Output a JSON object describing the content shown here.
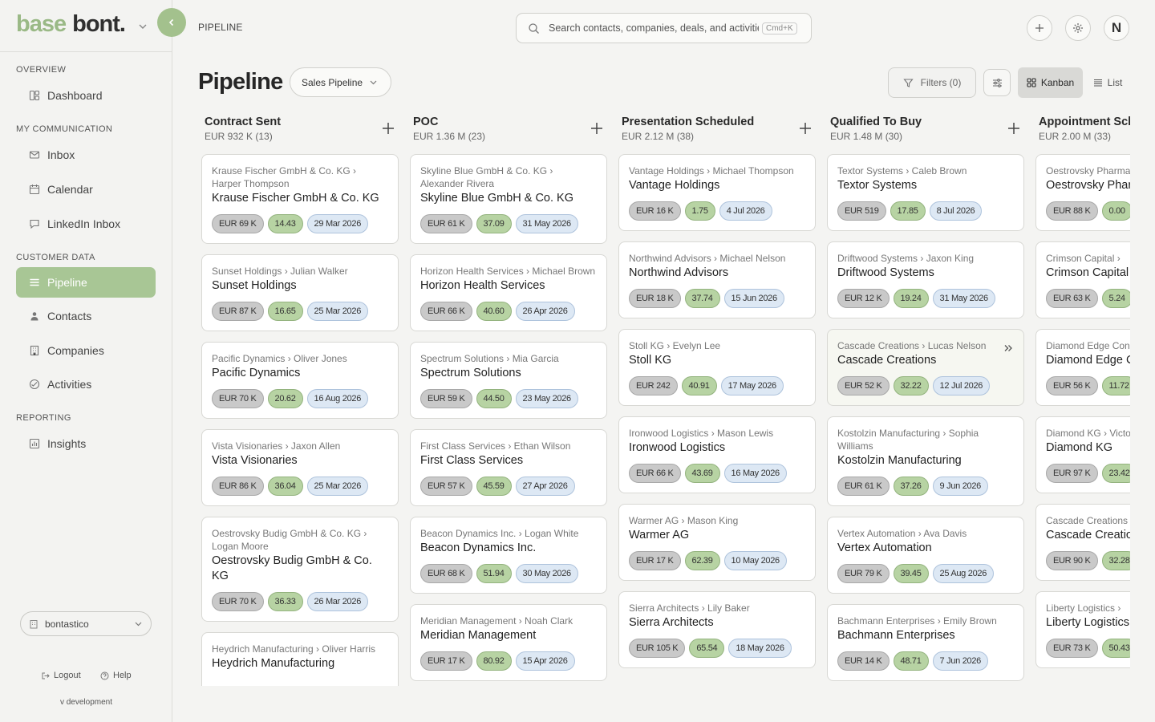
{
  "brand": {
    "part1": "base",
    "part2": "bont."
  },
  "sidebar": {
    "sections": [
      {
        "label": "OVERVIEW",
        "items": [
          {
            "label": "Dashboard",
            "icon": "dashboard-icon",
            "active": false
          }
        ]
      },
      {
        "label": "MY COMMUNICATION",
        "items": [
          {
            "label": "Inbox",
            "icon": "mail-icon",
            "active": false
          },
          {
            "label": "Calendar",
            "icon": "calendar-icon",
            "active": false
          },
          {
            "label": "LinkedIn Inbox",
            "icon": "chat-icon",
            "active": false
          }
        ]
      },
      {
        "label": "CUSTOMER DATA",
        "items": [
          {
            "label": "Pipeline",
            "icon": "pipeline-icon",
            "active": true
          },
          {
            "label": "Contacts",
            "icon": "contacts-icon",
            "active": false
          },
          {
            "label": "Companies",
            "icon": "building-icon",
            "active": false
          },
          {
            "label": "Activities",
            "icon": "activity-icon",
            "active": false
          }
        ]
      },
      {
        "label": "REPORTING",
        "items": [
          {
            "label": "Insights",
            "icon": "chart-icon",
            "active": false
          }
        ]
      }
    ],
    "workspace": "bontastico",
    "logout": "Logout",
    "help": "Help",
    "version": "v development"
  },
  "topbar": {
    "breadcrumb": "PIPELINE",
    "search_placeholder": "Search contacts, companies, deals, and activities",
    "search_shortcut": "Cmd+K",
    "avatar_initial": "N"
  },
  "page": {
    "title": "Pipeline",
    "pipeline_select": "Sales Pipeline",
    "filters_label": "Filters (0)",
    "view_kanban": "Kanban",
    "view_list": "List",
    "active_view": "Kanban"
  },
  "colors": {
    "accent": "#a8c695",
    "value_chip": "#c9c9c9",
    "probability_chip": "#b7d3a3",
    "date_chip": "#dde8f4"
  },
  "columns": [
    {
      "title": "Contract Sent",
      "summary": "EUR 932 K (13)",
      "cards": [
        {
          "crumb": "Krause Fischer GmbH & Co. KG › Harper Thompson",
          "name": "Krause Fischer GmbH & Co. KG",
          "value": "EUR 69 K",
          "probability": "14.43",
          "date": "29 Mar 2026"
        },
        {
          "crumb": "Sunset Holdings › Julian Walker",
          "name": "Sunset Holdings",
          "value": "EUR 87 K",
          "probability": "16.65",
          "date": "25 Mar 2026"
        },
        {
          "crumb": "Pacific Dynamics › Oliver Jones",
          "name": "Pacific Dynamics",
          "value": "EUR 70 K",
          "probability": "20.62",
          "date": "16 Aug 2026"
        },
        {
          "crumb": "Vista Visionaries › Jaxon Allen",
          "name": "Vista Visionaries",
          "value": "EUR 86 K",
          "probability": "36.04",
          "date": "25 Mar 2026"
        },
        {
          "crumb": "Oestrovsky Budig GmbH & Co. KG › Logan Moore",
          "name": "Oestrovsky Budig GmbH & Co. KG",
          "value": "EUR 70 K",
          "probability": "36.33",
          "date": "26 Mar 2026"
        },
        {
          "crumb": "Heydrich Manufacturing › Oliver Harris",
          "name": "Heydrich Manufacturing",
          "value": "",
          "probability": "",
          "date": ""
        }
      ]
    },
    {
      "title": "POC",
      "summary": "EUR 1.36 M (23)",
      "cards": [
        {
          "crumb": "Skyline Blue GmbH & Co. KG › Alexander Rivera",
          "name": "Skyline Blue GmbH & Co. KG",
          "value": "EUR 61 K",
          "probability": "37.09",
          "date": "31 May 2026"
        },
        {
          "crumb": "Horizon Health Services › Michael Brown",
          "name": "Horizon Health Services",
          "value": "EUR 66 K",
          "probability": "40.60",
          "date": "26 Apr 2026"
        },
        {
          "crumb": "Spectrum Solutions › Mia Garcia",
          "name": "Spectrum Solutions",
          "value": "EUR 59 K",
          "probability": "44.50",
          "date": "23 May 2026"
        },
        {
          "crumb": "First Class Services › Ethan Wilson",
          "name": "First Class Services",
          "value": "EUR 57 K",
          "probability": "45.59",
          "date": "27 Apr 2026"
        },
        {
          "crumb": "Beacon Dynamics Inc. › Logan White",
          "name": "Beacon Dynamics Inc.",
          "value": "EUR 68 K",
          "probability": "51.94",
          "date": "30 May 2026"
        },
        {
          "crumb": "Meridian Management › Noah Clark",
          "name": "Meridian Management",
          "value": "EUR 17 K",
          "probability": "80.92",
          "date": "15 Apr 2026"
        }
      ]
    },
    {
      "title": "Presentation Scheduled",
      "summary": "EUR 2.12 M (38)",
      "cards": [
        {
          "crumb": "Vantage Holdings › Michael Thompson",
          "name": "Vantage Holdings",
          "value": "EUR 16 K",
          "probability": "1.75",
          "date": "4 Jul 2026"
        },
        {
          "crumb": "Northwind Advisors › Michael Nelson",
          "name": "Northwind Advisors",
          "value": "EUR 18 K",
          "probability": "37.74",
          "date": "15 Jun 2026"
        },
        {
          "crumb": "Stoll KG › Evelyn Lee",
          "name": "Stoll KG",
          "value": "EUR 242",
          "probability": "40.91",
          "date": "17 May 2026"
        },
        {
          "crumb": "Ironwood Logistics › Mason Lewis",
          "name": "Ironwood Logistics",
          "value": "EUR 66 K",
          "probability": "43.69",
          "date": "16 May 2026"
        },
        {
          "crumb": "Warmer AG › Mason King",
          "name": "Warmer AG",
          "value": "EUR 17 K",
          "probability": "62.39",
          "date": "10 May 2026"
        },
        {
          "crumb": "Sierra Architects › Lily Baker",
          "name": "Sierra Architects",
          "value": "EUR 105 K",
          "probability": "65.54",
          "date": "18 May 2026"
        }
      ]
    },
    {
      "title": "Qualified To Buy",
      "summary": "EUR 1.48 M (30)",
      "cards": [
        {
          "crumb": "Textor Systems › Caleb Brown",
          "name": "Textor Systems",
          "value": "EUR 519",
          "probability": "17.85",
          "date": "8 Jul 2026"
        },
        {
          "crumb": "Driftwood Systems › Jaxon King",
          "name": "Driftwood Systems",
          "value": "EUR 12 K",
          "probability": "19.24",
          "date": "31 May 2026"
        },
        {
          "crumb": "Cascade Creations › Lucas Nelson",
          "name": "Cascade Creations",
          "value": "EUR 52 K",
          "probability": "32.22",
          "date": "12 Jul 2026",
          "hover": true
        },
        {
          "crumb": "Kostolzin Manufacturing › Sophia Williams",
          "name": "Kostolzin Manufacturing",
          "value": "EUR 61 K",
          "probability": "37.26",
          "date": "9 Jun 2026"
        },
        {
          "crumb": "Vertex Automation › Ava Davis",
          "name": "Vertex Automation",
          "value": "EUR 79 K",
          "probability": "39.45",
          "date": "25 Aug 2026"
        },
        {
          "crumb": "Bachmann Enterprises › Emily Brown",
          "name": "Bachmann Enterprises",
          "value": "EUR 14 K",
          "probability": "48.71",
          "date": "7 Jun 2026"
        }
      ]
    },
    {
      "title": "Appointment Scheduled",
      "summary": "EUR 2.00 M (33)",
      "cards": [
        {
          "crumb": "Oestrovsky Pharma › ",
          "name": "Oestrovsky Pharma",
          "value": "EUR 88 K",
          "probability": "0.00",
          "date": ""
        },
        {
          "crumb": "Crimson Capital › ",
          "name": "Crimson Capital",
          "value": "EUR 63 K",
          "probability": "5.24",
          "date": ""
        },
        {
          "crumb": "Diamond Edge Consulting › Nelson",
          "name": "Diamond Edge Consulting",
          "value": "EUR 56 K",
          "probability": "11.72",
          "date": ""
        },
        {
          "crumb": "Diamond KG › Victoria",
          "name": "Diamond KG",
          "value": "EUR 97 K",
          "probability": "23.42",
          "date": ""
        },
        {
          "crumb": "Cascade Creations › ",
          "name": "Cascade Creations",
          "value": "EUR 90 K",
          "probability": "32.28",
          "date": ""
        },
        {
          "crumb": "Liberty Logistics › ",
          "name": "Liberty Logistics",
          "value": "EUR 73 K",
          "probability": "50.43",
          "date": ""
        }
      ]
    }
  ]
}
